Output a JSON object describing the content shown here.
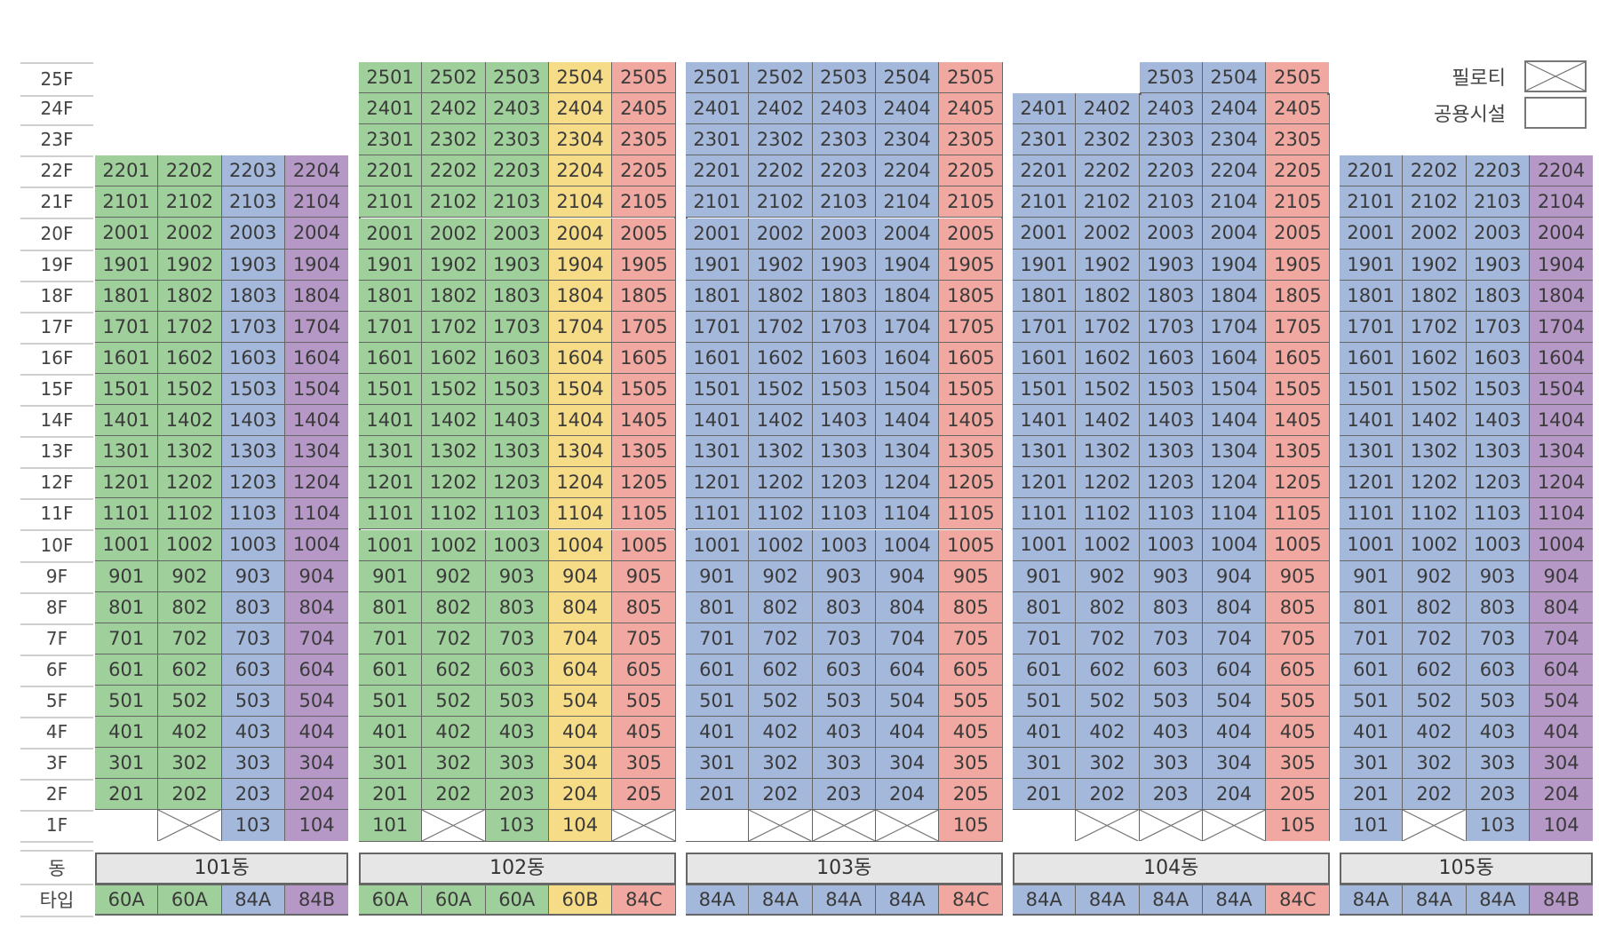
{
  "floors": [
    "25F",
    "24F",
    "23F",
    "22F",
    "21F",
    "20F",
    "19F",
    "18F",
    "17F",
    "16F",
    "15F",
    "14F",
    "13F",
    "12F",
    "11F",
    "10F",
    "9F",
    "8F",
    "7F",
    "6F",
    "5F",
    "4F",
    "3F",
    "2F",
    "1F"
  ],
  "row_labels": {
    "dong": "동",
    "type": "타입"
  },
  "colors": {
    "60A": "#9fcf9b",
    "60B": "#f7dc88",
    "84A": "#a4b8dc",
    "84B": "#b598c6",
    "84C": "#f0a8a0",
    "empty": "#ffffff"
  },
  "legend": [
    {
      "label": "필로티",
      "icon": "pilotis-x-box"
    },
    {
      "label": "공용시설",
      "icon": "common-facility-empty-box"
    }
  ],
  "buildings": [
    {
      "name": "101동",
      "types": [
        "60A",
        "60A",
        "84A",
        "84B"
      ],
      "top_floor": 22,
      "first_floor": [
        "empty",
        "pilotis",
        "103",
        "104"
      ]
    },
    {
      "name": "102동",
      "types": [
        "60A",
        "60A",
        "60A",
        "60B",
        "84C"
      ],
      "top_floor": 25,
      "first_floor": [
        "101",
        "pilotis",
        "103",
        "104",
        "pilotis"
      ]
    },
    {
      "name": "103동",
      "types": [
        "84A",
        "84A",
        "84A",
        "84A",
        "84C"
      ],
      "top_floor": 25,
      "first_floor": [
        "empty",
        "pilotis",
        "pilotis",
        "pilotis",
        "105"
      ]
    },
    {
      "name": "104동",
      "types": [
        "84A",
        "84A",
        "84A",
        "84A",
        "84C"
      ],
      "top_floor": 24,
      "top_floor_extra": {
        "floor": 25,
        "start_col": 2
      },
      "first_floor": [
        "empty",
        "pilotis",
        "pilotis",
        "pilotis",
        "105"
      ]
    },
    {
      "name": "105동",
      "types": [
        "84A",
        "84A",
        "84A",
        "84B"
      ],
      "top_floor": 22,
      "first_floor": [
        "101",
        "pilotis",
        "103",
        "104"
      ]
    }
  ]
}
